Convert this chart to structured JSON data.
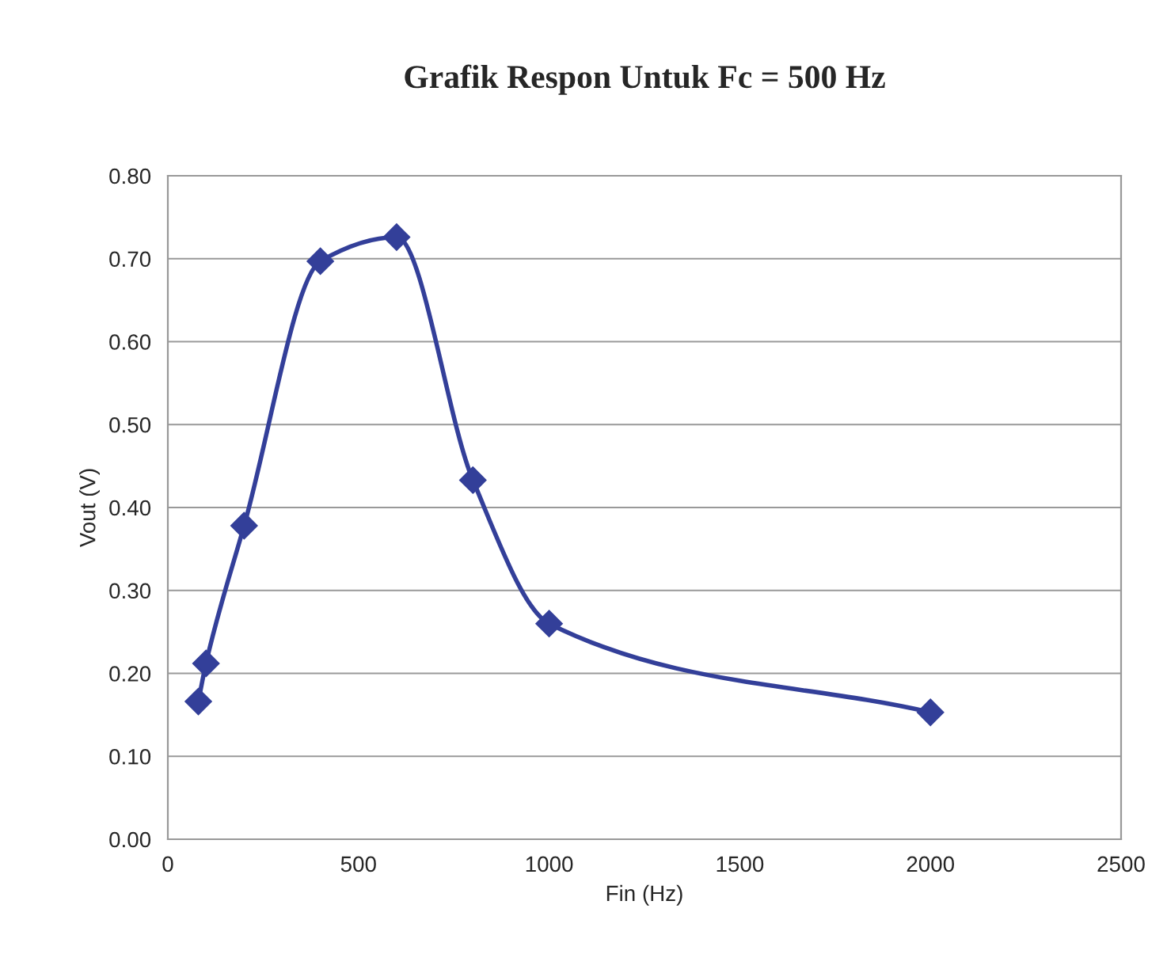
{
  "chart_data": {
    "type": "line",
    "title": "Grafik Respon Untuk Fc = 500 Hz",
    "xlabel": "Fin (Hz)",
    "ylabel": "Vout (V)",
    "series": [
      {
        "color": "#333f99",
        "x": [
          80,
          100,
          200,
          400,
          600,
          800,
          1000,
          2000
        ],
        "values": [
          0.166,
          0.212,
          0.378,
          0.697,
          0.726,
          0.433,
          0.26,
          0.153
        ]
      }
    ],
    "xlim": [
      0,
      2500
    ],
    "xticks": [
      0,
      500,
      1000,
      1500,
      2000,
      2500
    ],
    "ylim": [
      0,
      0.8
    ],
    "yticks": [
      {
        "value": 0,
        "label": "0.00"
      },
      {
        "value": 0.1,
        "label": "0.10"
      },
      {
        "value": 0.2,
        "label": "0.20"
      },
      {
        "value": 0.3,
        "label": "0.30"
      },
      {
        "value": 0.4,
        "label": "0.40"
      },
      {
        "value": 0.5,
        "label": "0.50"
      },
      {
        "value": 0.6,
        "label": "0.60"
      },
      {
        "value": 0.7,
        "label": "0.70"
      },
      {
        "value": 0.8,
        "label": "0.80"
      }
    ],
    "grid": "y",
    "marker": "diamond",
    "line_style": "solid",
    "legend": false
  }
}
